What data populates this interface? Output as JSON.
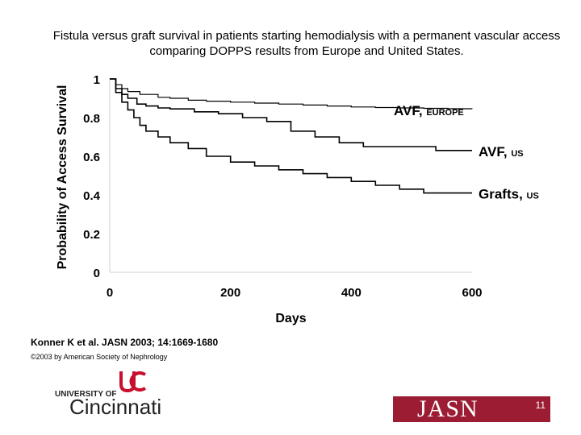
{
  "slide": {
    "title": "Fistula versus graft survival in patients starting hemodialysis with a permanent vascular access comparing DOPPS results from Europe and United States.",
    "citation": "Konner K et al. JASN 2003; 14:1669-1680",
    "copyright": "©2003 by American Society of Nephrology",
    "slide_number": "11"
  },
  "logos": {
    "uc_line1": "UNIVERSITY OF",
    "uc_line2": "Cincinnati",
    "jasn": "JASN"
  },
  "chart_data": {
    "type": "line",
    "title": "",
    "xlabel": "Days",
    "ylabel": "Probability of Access Survival",
    "xlim": [
      0,
      600
    ],
    "ylim": [
      0,
      1
    ],
    "xticks": [
      "0",
      "200",
      "400",
      "600"
    ],
    "yticks": [
      "0",
      "0.2",
      "0.4",
      "0.6",
      "0.8",
      "1"
    ],
    "grid": false,
    "legend": "inline labels at line ends",
    "line_color": "#000000",
    "series": [
      {
        "name": "AVF, EUROPE",
        "label_main": "AVF,",
        "label_sub": "EUROPE",
        "x": [
          0,
          10,
          20,
          30,
          50,
          80,
          100,
          130,
          160,
          200,
          240,
          280,
          320,
          360,
          400,
          440,
          480,
          520,
          560,
          600
        ],
        "y": [
          1.0,
          0.97,
          0.95,
          0.935,
          0.92,
          0.905,
          0.9,
          0.89,
          0.885,
          0.88,
          0.875,
          0.87,
          0.865,
          0.86,
          0.855,
          0.852,
          0.85,
          0.848,
          0.846,
          0.845
        ]
      },
      {
        "name": "AVF, US",
        "label_main": "AVF,",
        "label_sub": "US",
        "x": [
          0,
          10,
          20,
          30,
          45,
          60,
          80,
          100,
          140,
          180,
          220,
          260,
          300,
          340,
          380,
          420,
          460,
          500,
          540,
          560,
          600
        ],
        "y": [
          1.0,
          0.95,
          0.92,
          0.9,
          0.87,
          0.86,
          0.85,
          0.845,
          0.83,
          0.82,
          0.8,
          0.78,
          0.73,
          0.7,
          0.67,
          0.65,
          0.65,
          0.65,
          0.63,
          0.63,
          0.63
        ]
      },
      {
        "name": "Grafts, US",
        "label_main": "Grafts,",
        "label_sub": "US",
        "x": [
          0,
          10,
          20,
          30,
          40,
          50,
          60,
          80,
          100,
          130,
          160,
          200,
          240,
          280,
          320,
          360,
          400,
          440,
          480,
          520,
          560,
          600
        ],
        "y": [
          1.0,
          0.93,
          0.88,
          0.84,
          0.8,
          0.76,
          0.73,
          0.7,
          0.67,
          0.64,
          0.6,
          0.57,
          0.55,
          0.53,
          0.51,
          0.49,
          0.47,
          0.45,
          0.43,
          0.41,
          0.41,
          0.41
        ]
      }
    ]
  }
}
